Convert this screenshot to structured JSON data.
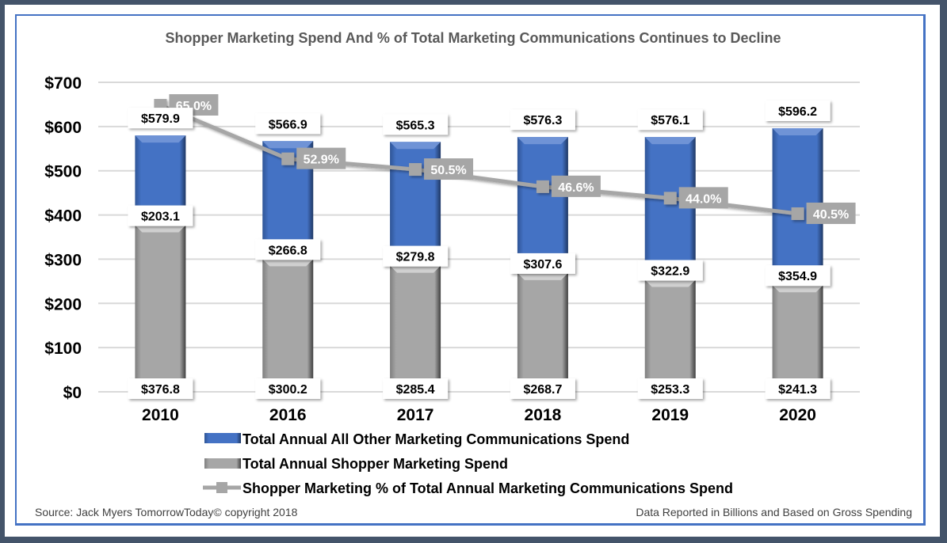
{
  "chart_data": {
    "type": "bar",
    "stacked": true,
    "title": "Shopper Marketing Spend And % of Total Marketing Communications Continues to Decline",
    "xlabel": "",
    "ylabel": "",
    "categories": [
      "2010",
      "2016",
      "2017",
      "2018",
      "2019",
      "2020"
    ],
    "ylim": [
      0,
      700
    ],
    "yticks": [
      0,
      100,
      200,
      300,
      400,
      500,
      600,
      700
    ],
    "ytick_labels": [
      "$0",
      "$100",
      "$200",
      "$300",
      "$400",
      "$500",
      "$600",
      "$700"
    ],
    "grid": true,
    "series": [
      {
        "name": "Total Annual Shopper Marketing Spend",
        "type": "bar",
        "color": "#a6a6a6",
        "values": [
          376.8,
          300.2,
          285.4,
          268.7,
          253.3,
          241.3
        ],
        "labels": [
          "$376.8",
          "$300.2",
          "$285.4",
          "$268.7",
          "$253.3",
          "$241.3"
        ]
      },
      {
        "name": "Total Annual All Other Marketing Communications Spend",
        "type": "bar",
        "color": "#4472c4",
        "values": [
          203.1,
          266.8,
          279.8,
          307.6,
          322.9,
          354.9
        ],
        "labels": [
          "$203.1",
          "$266.8",
          "$279.8",
          "$307.6",
          "$322.9",
          "$354.9"
        ]
      },
      {
        "name": "Shopper Marketing % of Total Annual Marketing Communications Spend",
        "type": "line",
        "color": "#a6a6a6",
        "axis": "secondary",
        "values": [
          65.0,
          52.9,
          50.5,
          46.6,
          44.0,
          40.5
        ],
        "labels": [
          "65.0%",
          "52.9%",
          "50.5%",
          "46.6%",
          "44.0%",
          "40.5%"
        ]
      }
    ],
    "totals": [
      579.9,
      566.9,
      565.3,
      576.3,
      576.1,
      596.2
    ],
    "total_labels": [
      "$579.9",
      "$566.9",
      "$565.3",
      "$576.3",
      "$576.1",
      "$596.2"
    ],
    "legend_position": "bottom",
    "legend": [
      "Total Annual All Other Marketing Communications Spend",
      "Total Annual Shopper Marketing Spend",
      "Shopper Marketing % of Total Annual Marketing Communications Spend"
    ]
  },
  "footer": {
    "source": "Source: Jack Myers TomorrowToday© copyright 2018",
    "note": "Data Reported in Billions and Based on Gross Spending"
  }
}
